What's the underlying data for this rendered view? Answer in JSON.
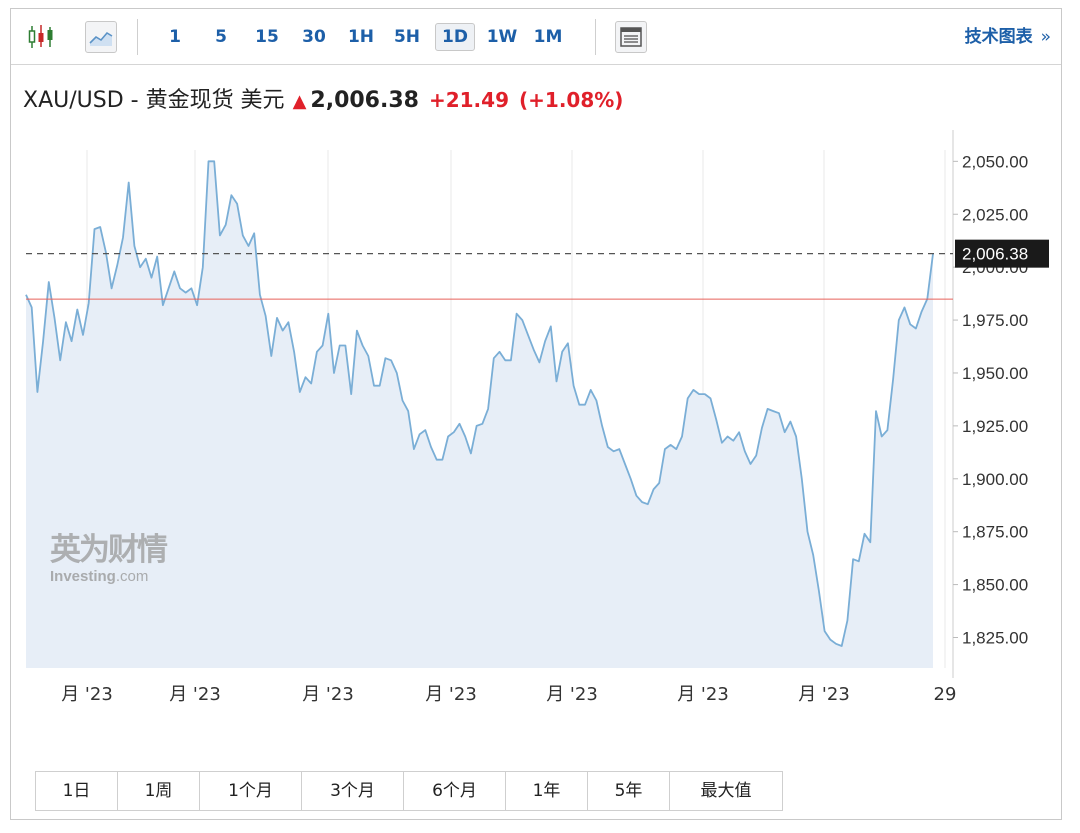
{
  "toolbar": {
    "chart_type_icons": [
      "candlestick-icon",
      "area-chart-icon"
    ],
    "timeframes": [
      "1",
      "5",
      "15",
      "30",
      "1H",
      "5H",
      "1D",
      "1W",
      "1M"
    ],
    "active_timeframe": "1D",
    "layout_icon": "layout-icon",
    "tech_chart_label": "技术图表",
    "tech_chart_arrow": "»"
  },
  "header": {
    "symbol": "XAU/USD - 黄金现货 美元",
    "direction_icon": "up-arrow-icon",
    "price": "2,006.38",
    "change": "+21.49",
    "change_pct": "(+1.08%)"
  },
  "watermark": {
    "cn": "英为财情",
    "en": "Investing",
    "en_suffix": ".com"
  },
  "range_buttons": [
    "1日",
    "1周",
    "1个月",
    "3个月",
    "6个月",
    "1年",
    "5年",
    "最大值"
  ],
  "colors": {
    "line": "#7aaed6",
    "area": "#e7eef7",
    "up": "#e0202a",
    "link": "#1d5fa8",
    "ref_line": "#e8625a"
  },
  "chart_data": {
    "type": "area",
    "title": "",
    "xlabel": "",
    "ylabel": "",
    "ylim": [
      1812,
      2053
    ],
    "y_ticks": [
      1825,
      1850,
      1875,
      1900,
      1925,
      1950,
      1975,
      2000,
      2025,
      2050
    ],
    "y_tick_labels": [
      "1,825.00",
      "1,850.00",
      "1,875.00",
      "1,900.00",
      "1,925.00",
      "1,950.00",
      "1,975.00",
      "2,000.00",
      "2,025.00",
      "2,050.00"
    ],
    "x_tick_labels": [
      "月 '23",
      "月 '23",
      "月 '23",
      "月 '23",
      "月 '23",
      "月 '23",
      "月 '23",
      "29"
    ],
    "last_price": 2006.38,
    "last_price_label": "2,006.38",
    "previous_close": 1984.89,
    "grid": "vertical",
    "values": [
      1987,
      1981,
      1941,
      1965,
      1993,
      1976,
      1956,
      1974,
      1965,
      1980,
      1968,
      1983,
      2018,
      2019,
      2007,
      1990,
      2001,
      2014,
      2040,
      2010,
      2000,
      2004,
      1995,
      2005,
      1982,
      1990,
      1998,
      1990,
      1988,
      1990,
      1982,
      2000,
      2050,
      2050,
      2015,
      2020,
      2034,
      2030,
      2015,
      2010,
      2016,
      1987,
      1977,
      1958,
      1976,
      1970,
      1974,
      1960,
      1941,
      1948,
      1945,
      1960,
      1963,
      1978,
      1950,
      1963,
      1963,
      1940,
      1970,
      1963,
      1958,
      1944,
      1944,
      1957,
      1956,
      1950,
      1937,
      1932,
      1914,
      1921,
      1923,
      1915,
      1909,
      1909,
      1920,
      1922,
      1926,
      1920,
      1912,
      1925,
      1926,
      1933,
      1957,
      1960,
      1956,
      1956,
      1978,
      1975,
      1968,
      1961,
      1955,
      1965,
      1972,
      1946,
      1960,
      1964,
      1944,
      1935,
      1935,
      1942,
      1937,
      1925,
      1915,
      1913,
      1914,
      1907,
      1900,
      1892,
      1889,
      1888,
      1895,
      1898,
      1914,
      1916,
      1914,
      1920,
      1938,
      1942,
      1940,
      1940,
      1938,
      1928,
      1917,
      1920,
      1918,
      1922,
      1913,
      1907,
      1911,
      1924,
      1933,
      1932,
      1931,
      1922,
      1927,
      1920,
      1900,
      1875,
      1864,
      1847,
      1828,
      1824,
      1822,
      1821,
      1833,
      1862,
      1861,
      1874,
      1870,
      1932,
      1920,
      1923,
      1947,
      1975,
      1981,
      1973,
      1971,
      1979,
      1985,
      2006.38
    ]
  }
}
